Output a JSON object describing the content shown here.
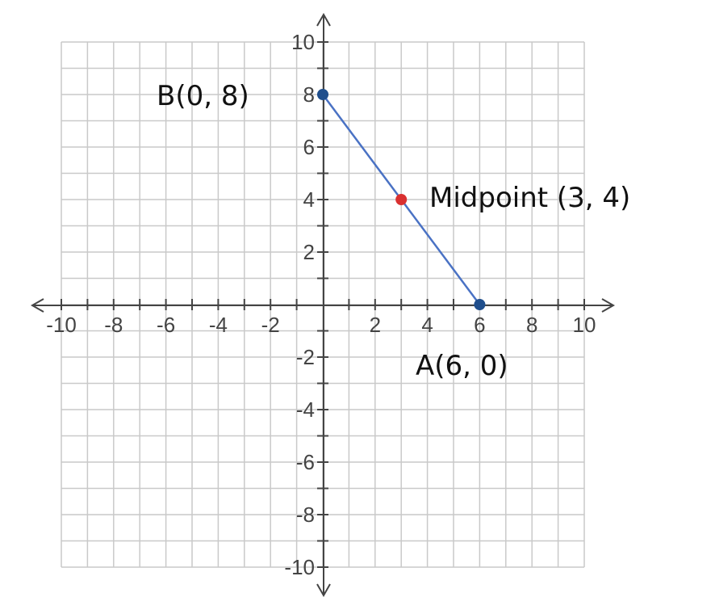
{
  "chart_data": {
    "type": "scatter",
    "xlim": [
      -10,
      10
    ],
    "ylim": [
      -10,
      10
    ],
    "grid": true,
    "x_ticks": [
      {
        "value": -10,
        "label": "-10"
      },
      {
        "value": -8,
        "label": "-8"
      },
      {
        "value": -6,
        "label": "-6"
      },
      {
        "value": -4,
        "label": "-4"
      },
      {
        "value": -2,
        "label": "-2"
      },
      {
        "value": 2,
        "label": "2"
      },
      {
        "value": 4,
        "label": "4"
      },
      {
        "value": 6,
        "label": "6"
      },
      {
        "value": 8,
        "label": "8"
      },
      {
        "value": 10,
        "label": "10"
      }
    ],
    "y_ticks": [
      {
        "value": 10,
        "label": "10"
      },
      {
        "value": 8,
        "label": "8"
      },
      {
        "value": 6,
        "label": "6"
      },
      {
        "value": 4,
        "label": "4"
      },
      {
        "value": 2,
        "label": "2"
      },
      {
        "value": -2,
        "label": "-2"
      },
      {
        "value": -4,
        "label": "-4"
      },
      {
        "value": -6,
        "label": "-6"
      },
      {
        "value": -8,
        "label": "-8"
      },
      {
        "value": -10,
        "label": "-10"
      }
    ],
    "segment": {
      "from": [
        0,
        8
      ],
      "to": [
        6,
        0
      ],
      "color": "#4a72c4"
    },
    "points": [
      {
        "x": 0,
        "y": 8,
        "label": "B(0, 8)",
        "color": "#1f4e8c"
      },
      {
        "x": 6,
        "y": 0,
        "label": "A(6, 0)",
        "color": "#1f4e8c"
      },
      {
        "x": 3,
        "y": 4,
        "label": "Midpoint (3, 4)",
        "color": "#d93030"
      }
    ]
  }
}
